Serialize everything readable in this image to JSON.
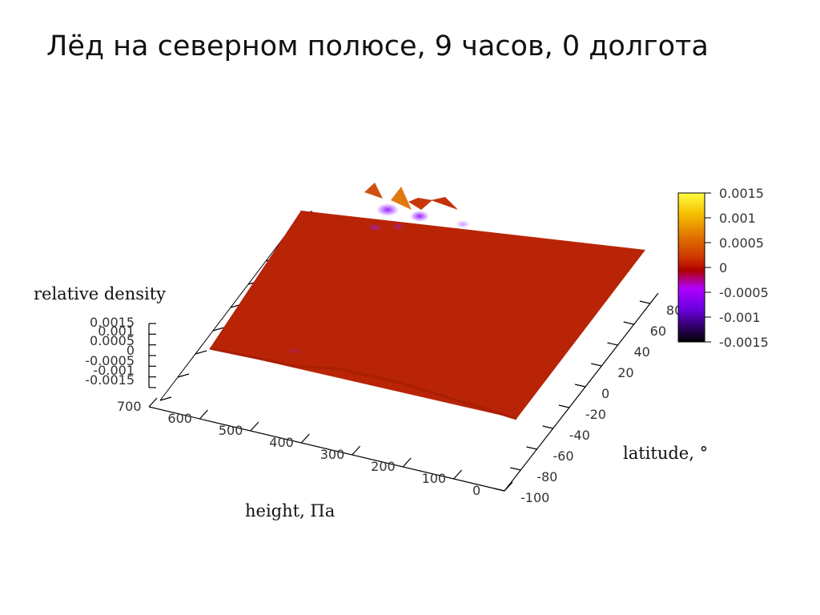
{
  "title": "Лёд на северном полюсе, 9 часов, 0 долгота",
  "chart_data": {
    "type": "surface",
    "title": "Лёд на северном полюсе, 9 часов, 0 долгота",
    "xlabel": "height, Па",
    "ylabel": "latitude, °",
    "zlabel": "relative density",
    "x_ticks": [
      "0",
      "100",
      "200",
      "300",
      "400",
      "500",
      "600",
      "700"
    ],
    "y_ticks": [
      "-100",
      "-80",
      "-60",
      "-40",
      "-20",
      "0",
      "20",
      "40",
      "60",
      "80"
    ],
    "z_ticks": [
      "0.0015",
      "0.001",
      "0.0005",
      "0",
      "-0.0005",
      "-0.001",
      "-0.0015"
    ],
    "colorbar_ticks": [
      "0.0015",
      "0.001",
      "0.0005",
      "0",
      "-0.0005",
      "-0.001",
      "-0.0015"
    ],
    "xlim": [
      0,
      700
    ],
    "ylim": [
      -100,
      90
    ],
    "zlim": [
      -0.0015,
      0.0015
    ],
    "surface_value_typical": 0,
    "features": [
      {
        "height": 650,
        "latitude": 85,
        "relative_density": 0.0012
      },
      {
        "height": 600,
        "latitude": 85,
        "relative_density": -0.0008
      },
      {
        "height": 550,
        "latitude": 85,
        "relative_density": -0.0006
      }
    ],
    "colormap": {
      "min_color": "#000000",
      "stops": [
        "#000000",
        "#3a0a6e",
        "#8f00ff",
        "#b00000",
        "#cc3300",
        "#e07000",
        "#f5c000",
        "#ffff40"
      ]
    },
    "surface_color": "#b82405",
    "grid": false
  }
}
